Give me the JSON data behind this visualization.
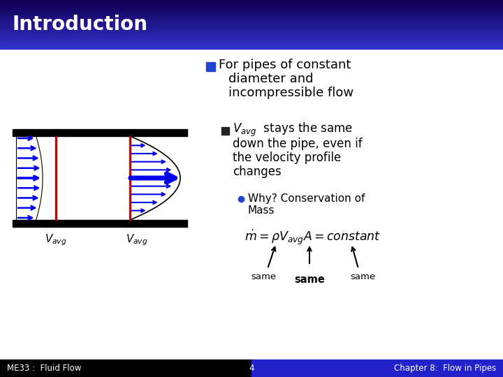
{
  "title": "Introduction",
  "footer_left": "ME33 :  Fluid Flow",
  "footer_center": "4",
  "footer_right": "Chapter 8:  Flow in Pipes",
  "pipe_arrow_color": "#0000ee",
  "red_line_color": "#cc0000",
  "title_gradient_top": "#1a0080",
  "title_gradient_bot": "#3333cc",
  "footer_left_bg": "#000000",
  "footer_right_bg": "#2222cc",
  "slide_bg": "#ffffff",
  "bullet1_sq_color": "#2244cc",
  "bullet2_sq_color": "#222222",
  "bullet3_dot_color": "#2244cc"
}
